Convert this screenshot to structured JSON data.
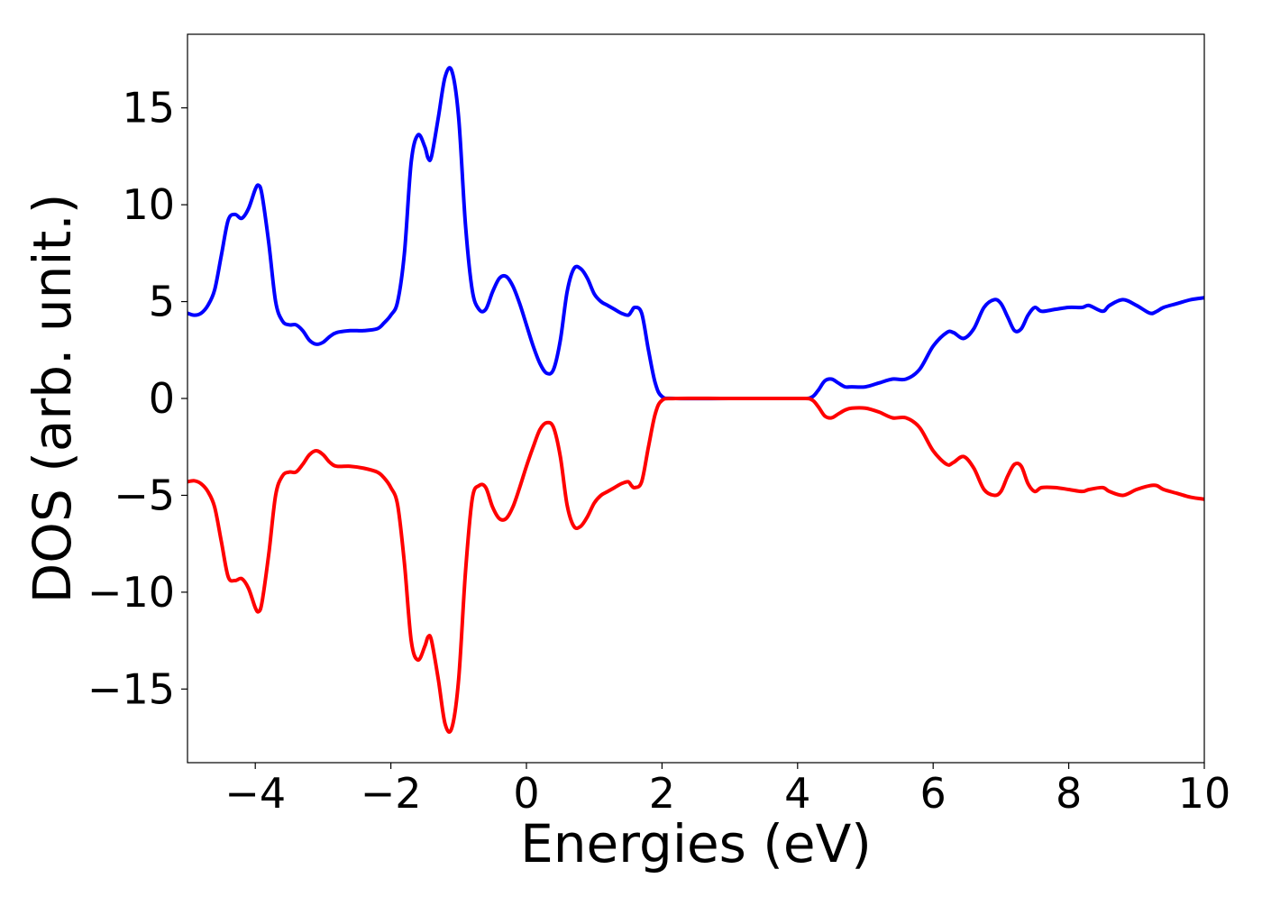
{
  "chart_data": {
    "type": "line",
    "title": "",
    "xlabel": "Energies (eV)",
    "ylabel": "DOS (arb. unit.)",
    "xlim": [
      -5,
      10
    ],
    "ylim": [
      -18.8,
      18.8
    ],
    "grid": false,
    "x_ticks": [
      {
        "value": -4,
        "label": "−4"
      },
      {
        "value": -2,
        "label": "−2"
      },
      {
        "value": 0,
        "label": "0"
      },
      {
        "value": 2,
        "label": "2"
      },
      {
        "value": 4,
        "label": "4"
      },
      {
        "value": 6,
        "label": "6"
      },
      {
        "value": 8,
        "label": "8"
      },
      {
        "value": 10,
        "label": "10"
      }
    ],
    "y_ticks": [
      {
        "value": 15,
        "label": "15"
      },
      {
        "value": 10,
        "label": "10"
      },
      {
        "value": 5,
        "label": "5"
      },
      {
        "value": 0,
        "label": "0"
      },
      {
        "value": -5,
        "label": "−5"
      },
      {
        "value": -10,
        "label": "−10"
      },
      {
        "value": -15,
        "label": "−15"
      }
    ],
    "series": [
      {
        "color": "#0000ff",
        "points": [
          [
            -5.0,
            4.4
          ],
          [
            -4.9,
            4.3
          ],
          [
            -4.8,
            4.4
          ],
          [
            -4.7,
            4.8
          ],
          [
            -4.6,
            5.6
          ],
          [
            -4.5,
            7.4
          ],
          [
            -4.4,
            9.2
          ],
          [
            -4.3,
            9.5
          ],
          [
            -4.2,
            9.3
          ],
          [
            -4.1,
            9.8
          ],
          [
            -4.0,
            10.8
          ],
          [
            -3.95,
            11.0
          ],
          [
            -3.9,
            10.5
          ],
          [
            -3.8,
            8.0
          ],
          [
            -3.7,
            5.0
          ],
          [
            -3.6,
            4.0
          ],
          [
            -3.5,
            3.8
          ],
          [
            -3.4,
            3.8
          ],
          [
            -3.3,
            3.5
          ],
          [
            -3.2,
            3.0
          ],
          [
            -3.1,
            2.8
          ],
          [
            -3.0,
            2.9
          ],
          [
            -2.9,
            3.2
          ],
          [
            -2.8,
            3.4
          ],
          [
            -2.6,
            3.5
          ],
          [
            -2.4,
            3.5
          ],
          [
            -2.2,
            3.6
          ],
          [
            -2.1,
            3.9
          ],
          [
            -2.0,
            4.3
          ],
          [
            -1.9,
            5.0
          ],
          [
            -1.8,
            7.5
          ],
          [
            -1.7,
            12.2
          ],
          [
            -1.6,
            13.6
          ],
          [
            -1.5,
            13.0
          ],
          [
            -1.45,
            12.4
          ],
          [
            -1.4,
            12.5
          ],
          [
            -1.3,
            14.5
          ],
          [
            -1.2,
            16.6
          ],
          [
            -1.1,
            16.9
          ],
          [
            -1.0,
            14.5
          ],
          [
            -0.9,
            9.0
          ],
          [
            -0.8,
            5.6
          ],
          [
            -0.7,
            4.6
          ],
          [
            -0.6,
            4.6
          ],
          [
            -0.5,
            5.5
          ],
          [
            -0.4,
            6.2
          ],
          [
            -0.3,
            6.3
          ],
          [
            -0.2,
            5.8
          ],
          [
            -0.1,
            4.9
          ],
          [
            0.0,
            3.8
          ],
          [
            0.1,
            2.7
          ],
          [
            0.2,
            1.8
          ],
          [
            0.3,
            1.3
          ],
          [
            0.4,
            1.5
          ],
          [
            0.5,
            3.0
          ],
          [
            0.6,
            5.5
          ],
          [
            0.7,
            6.7
          ],
          [
            0.8,
            6.7
          ],
          [
            0.9,
            6.2
          ],
          [
            1.0,
            5.4
          ],
          [
            1.1,
            5.0
          ],
          [
            1.2,
            4.8
          ],
          [
            1.3,
            4.6
          ],
          [
            1.4,
            4.4
          ],
          [
            1.5,
            4.3
          ],
          [
            1.55,
            4.5
          ],
          [
            1.6,
            4.7
          ],
          [
            1.7,
            4.4
          ],
          [
            1.8,
            2.5
          ],
          [
            1.9,
            0.8
          ],
          [
            2.0,
            0.1
          ],
          [
            2.2,
            0.0
          ],
          [
            3.0,
            0.0
          ],
          [
            4.0,
            0.0
          ],
          [
            4.2,
            0.05
          ],
          [
            4.3,
            0.4
          ],
          [
            4.4,
            0.9
          ],
          [
            4.5,
            1.0
          ],
          [
            4.6,
            0.8
          ],
          [
            4.7,
            0.6
          ],
          [
            4.8,
            0.6
          ],
          [
            5.0,
            0.6
          ],
          [
            5.2,
            0.8
          ],
          [
            5.4,
            1.0
          ],
          [
            5.6,
            1.0
          ],
          [
            5.8,
            1.5
          ],
          [
            6.0,
            2.7
          ],
          [
            6.2,
            3.4
          ],
          [
            6.3,
            3.4
          ],
          [
            6.45,
            3.1
          ],
          [
            6.6,
            3.6
          ],
          [
            6.75,
            4.7
          ],
          [
            6.9,
            5.1
          ],
          [
            7.0,
            4.9
          ],
          [
            7.1,
            4.2
          ],
          [
            7.2,
            3.5
          ],
          [
            7.3,
            3.6
          ],
          [
            7.4,
            4.3
          ],
          [
            7.5,
            4.7
          ],
          [
            7.6,
            4.5
          ],
          [
            7.8,
            4.6
          ],
          [
            8.0,
            4.7
          ],
          [
            8.2,
            4.7
          ],
          [
            8.3,
            4.8
          ],
          [
            8.5,
            4.5
          ],
          [
            8.6,
            4.8
          ],
          [
            8.8,
            5.1
          ],
          [
            9.0,
            4.8
          ],
          [
            9.2,
            4.4
          ],
          [
            9.3,
            4.5
          ],
          [
            9.4,
            4.7
          ],
          [
            9.6,
            4.9
          ],
          [
            9.8,
            5.1
          ],
          [
            10.0,
            5.2
          ]
        ]
      },
      {
        "color": "#ff0000",
        "points": [
          [
            -5.0,
            -4.3
          ],
          [
            -4.9,
            -4.25
          ],
          [
            -4.8,
            -4.4
          ],
          [
            -4.7,
            -4.8
          ],
          [
            -4.6,
            -5.6
          ],
          [
            -4.5,
            -7.4
          ],
          [
            -4.4,
            -9.2
          ],
          [
            -4.3,
            -9.4
          ],
          [
            -4.2,
            -9.3
          ],
          [
            -4.1,
            -9.8
          ],
          [
            -4.0,
            -10.8
          ],
          [
            -3.95,
            -11.0
          ],
          [
            -3.9,
            -10.5
          ],
          [
            -3.8,
            -8.0
          ],
          [
            -3.7,
            -5.0
          ],
          [
            -3.6,
            -4.0
          ],
          [
            -3.5,
            -3.8
          ],
          [
            -3.4,
            -3.8
          ],
          [
            -3.3,
            -3.4
          ],
          [
            -3.2,
            -2.9
          ],
          [
            -3.1,
            -2.7
          ],
          [
            -3.0,
            -2.9
          ],
          [
            -2.9,
            -3.3
          ],
          [
            -2.8,
            -3.5
          ],
          [
            -2.6,
            -3.5
          ],
          [
            -2.4,
            -3.6
          ],
          [
            -2.2,
            -3.8
          ],
          [
            -2.1,
            -4.1
          ],
          [
            -2.0,
            -4.6
          ],
          [
            -1.9,
            -5.5
          ],
          [
            -1.8,
            -8.5
          ],
          [
            -1.7,
            -12.5
          ],
          [
            -1.6,
            -13.5
          ],
          [
            -1.5,
            -12.8
          ],
          [
            -1.45,
            -12.3
          ],
          [
            -1.4,
            -12.5
          ],
          [
            -1.3,
            -14.5
          ],
          [
            -1.2,
            -16.8
          ],
          [
            -1.1,
            -17.0
          ],
          [
            -1.0,
            -14.5
          ],
          [
            -0.9,
            -9.0
          ],
          [
            -0.8,
            -5.2
          ],
          [
            -0.7,
            -4.5
          ],
          [
            -0.6,
            -4.6
          ],
          [
            -0.5,
            -5.6
          ],
          [
            -0.4,
            -6.2
          ],
          [
            -0.3,
            -6.2
          ],
          [
            -0.2,
            -5.6
          ],
          [
            -0.1,
            -4.6
          ],
          [
            0.0,
            -3.5
          ],
          [
            0.1,
            -2.5
          ],
          [
            0.2,
            -1.6
          ],
          [
            0.3,
            -1.25
          ],
          [
            0.4,
            -1.5
          ],
          [
            0.5,
            -3.0
          ],
          [
            0.6,
            -5.5
          ],
          [
            0.7,
            -6.6
          ],
          [
            0.8,
            -6.6
          ],
          [
            0.9,
            -6.1
          ],
          [
            1.0,
            -5.4
          ],
          [
            1.1,
            -5.0
          ],
          [
            1.2,
            -4.8
          ],
          [
            1.3,
            -4.6
          ],
          [
            1.4,
            -4.4
          ],
          [
            1.5,
            -4.3
          ],
          [
            1.55,
            -4.5
          ],
          [
            1.6,
            -4.6
          ],
          [
            1.7,
            -4.3
          ],
          [
            1.8,
            -2.5
          ],
          [
            1.9,
            -0.8
          ],
          [
            2.0,
            -0.1
          ],
          [
            2.2,
            0.0
          ],
          [
            3.0,
            0.0
          ],
          [
            4.0,
            0.0
          ],
          [
            4.2,
            -0.05
          ],
          [
            4.3,
            -0.4
          ],
          [
            4.4,
            -0.9
          ],
          [
            4.5,
            -1.0
          ],
          [
            4.6,
            -0.8
          ],
          [
            4.7,
            -0.6
          ],
          [
            4.8,
            -0.5
          ],
          [
            5.0,
            -0.5
          ],
          [
            5.2,
            -0.7
          ],
          [
            5.4,
            -1.0
          ],
          [
            5.6,
            -1.0
          ],
          [
            5.8,
            -1.5
          ],
          [
            6.0,
            -2.7
          ],
          [
            6.2,
            -3.4
          ],
          [
            6.3,
            -3.3
          ],
          [
            6.45,
            -3.0
          ],
          [
            6.6,
            -3.6
          ],
          [
            6.75,
            -4.7
          ],
          [
            6.9,
            -5.0
          ],
          [
            7.0,
            -4.8
          ],
          [
            7.1,
            -4.0
          ],
          [
            7.2,
            -3.4
          ],
          [
            7.3,
            -3.5
          ],
          [
            7.4,
            -4.4
          ],
          [
            7.5,
            -4.8
          ],
          [
            7.6,
            -4.6
          ],
          [
            7.8,
            -4.6
          ],
          [
            8.0,
            -4.7
          ],
          [
            8.2,
            -4.8
          ],
          [
            8.3,
            -4.7
          ],
          [
            8.5,
            -4.6
          ],
          [
            8.6,
            -4.8
          ],
          [
            8.8,
            -5.0
          ],
          [
            9.0,
            -4.7
          ],
          [
            9.2,
            -4.5
          ],
          [
            9.3,
            -4.5
          ],
          [
            9.4,
            -4.7
          ],
          [
            9.6,
            -4.9
          ],
          [
            9.8,
            -5.1
          ],
          [
            10.0,
            -5.2
          ]
        ]
      }
    ]
  }
}
